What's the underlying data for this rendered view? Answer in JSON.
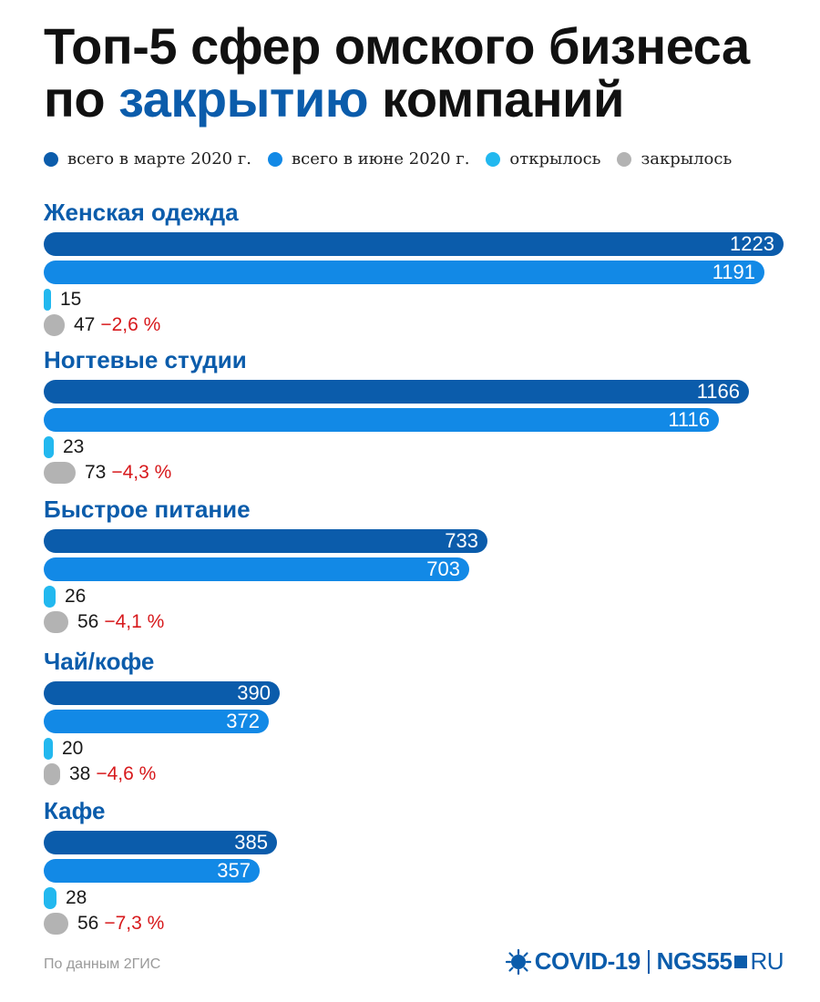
{
  "title": {
    "line1": "Топ-5 сфер омского бизнеса",
    "line2_pre": "по ",
    "line2_accent": "закрытию",
    "line2_post": " компаний"
  },
  "colors": {
    "march": "#0b5cab",
    "june": "#1289e6",
    "opened": "#22b8ef",
    "closed": "#b3b3b3",
    "accent": "#0b5cab",
    "negative": "#d7191c"
  },
  "legend": [
    {
      "label": "всего в марте 2020 г.",
      "color": "#0b5cab"
    },
    {
      "label": "всего в июне 2020 г.",
      "color": "#1289e6"
    },
    {
      "label": "открылось",
      "color": "#22b8ef"
    },
    {
      "label": "закрылось",
      "color": "#b3b3b3"
    }
  ],
  "chart_data": {
    "type": "bar",
    "orientation": "horizontal",
    "categories": [
      "Женская одежда",
      "Ногтевые студии",
      "Быстрое питание",
      "Чай/кофе",
      "Кафе"
    ],
    "series": [
      {
        "name": "всего в марте 2020 г.",
        "values": [
          1223,
          1166,
          733,
          390,
          385
        ]
      },
      {
        "name": "всего в июне 2020 г.",
        "values": [
          1191,
          1116,
          703,
          372,
          357
        ]
      },
      {
        "name": "открылось",
        "values": [
          15,
          23,
          26,
          20,
          28
        ]
      },
      {
        "name": "закрылось",
        "values": [
          47,
          73,
          56,
          38,
          56
        ]
      }
    ],
    "change_labels": [
      "−2,6 %",
      "−4,3 %",
      "−4,1 %",
      "−4,6 %",
      "−7,3 %"
    ],
    "legend_position": "top",
    "grid": false
  },
  "source": "По данным 2ГИС",
  "logo": {
    "covid": "COVID-19",
    "ngs": "NGS55",
    "ru": "RU"
  }
}
